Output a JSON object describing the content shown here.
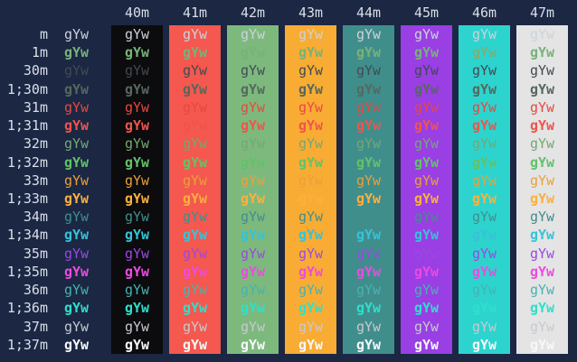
{
  "terminal": {
    "background": "#1b2743",
    "label_color": "#d9dfe8",
    "test_string": "gYw"
  },
  "columns": [
    {
      "label": "40m",
      "bg": "#0c0b0d"
    },
    {
      "label": "41m",
      "bg": "#f4584e"
    },
    {
      "label": "42m",
      "bg": "#7db97d"
    },
    {
      "label": "43m",
      "bg": "#f9ac33"
    },
    {
      "label": "44m",
      "bg": "#408e8c"
    },
    {
      "label": "45m",
      "bg": "#993fe3"
    },
    {
      "label": "46m",
      "bg": "#2dd4ce"
    },
    {
      "label": "47m",
      "bg": "#e4e4e4"
    }
  ],
  "rows": [
    {
      "label": "m",
      "fg": "#ccd2da",
      "bold": false
    },
    {
      "label": "1m",
      "fg": "#78b278",
      "bold": true
    },
    {
      "label": "30m",
      "fg": "#414a52",
      "bold": false
    },
    {
      "label": "1;30m",
      "fg": "#56685e",
      "bold": true
    },
    {
      "label": "31m",
      "fg": "#e84840",
      "bold": false
    },
    {
      "label": "1;31m",
      "fg": "#f0544a",
      "bold": true
    },
    {
      "label": "32m",
      "fg": "#73a873",
      "bold": false
    },
    {
      "label": "1;32m",
      "fg": "#62c26a",
      "bold": true
    },
    {
      "label": "33m",
      "fg": "#e9a13a",
      "bold": false
    },
    {
      "label": "1;33m",
      "fg": "#fbb03f",
      "bold": true
    },
    {
      "label": "34m",
      "fg": "#418e8e",
      "bold": false
    },
    {
      "label": "1;34m",
      "fg": "#36c3d7",
      "bold": true
    },
    {
      "label": "35m",
      "fg": "#9a48e5",
      "bold": false
    },
    {
      "label": "1;35m",
      "fg": "#ee4ae2",
      "bold": true
    },
    {
      "label": "36m",
      "fg": "#45b3b3",
      "bold": false
    },
    {
      "label": "1;36m",
      "fg": "#2ce0cd",
      "bold": true
    },
    {
      "label": "37m",
      "fg": "#c6cad0",
      "bold": false
    },
    {
      "label": "1;37m",
      "fg": "#f6f8fa",
      "bold": true
    }
  ]
}
